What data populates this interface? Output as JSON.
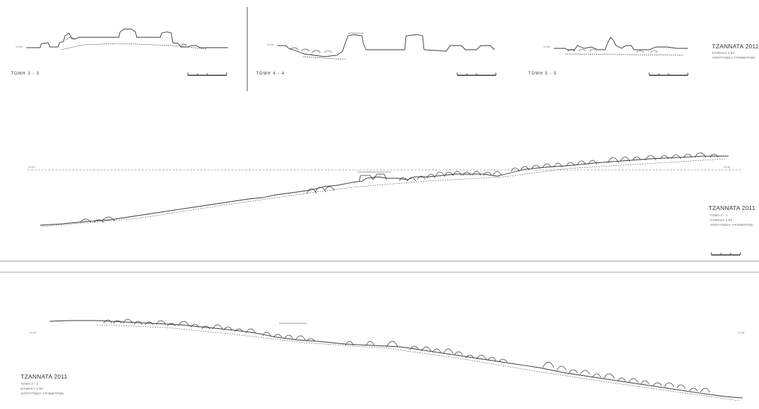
{
  "top_sections": [
    {
      "label": "ΤΟΜΗ 3 - 3"
    },
    {
      "label": "ΤΟΜΗ 4 - 4"
    },
    {
      "label": "ΤΟΜΗ 5 - 5"
    }
  ],
  "title_top": {
    "title": "TZANNATA 2011",
    "line1": "ΚΛΙΜΑΚΑ 1:50",
    "line2": "ΑΠΟΤΥΠΩΣΗ ΥΨΟΜΕΤΡΩΝ"
  },
  "title_middle": {
    "title": "TZANNATA 2011",
    "line1": "ΤΟΜΗ 1 - 1",
    "line2": "ΚΛΙΜΑΚΑ 1:50",
    "line3": "ΑΠΟΤΥΠΩΣΗ ΥΨΟΜΕΤΡΩΝ"
  },
  "title_bottom": {
    "title": "TZANNATA 2011",
    "line1": "ΤΟΜΗ 2 - 2",
    "line2": "ΚΛΙΜΑΚΑ 1:50",
    "line3": "ΑΠΟΤΥΠΩΣΗ ΥΨΟΜΕΤΡΩΝ"
  },
  "levels": {
    "mid_left": "+0.00",
    "mid_right": "+0.00",
    "bot_left": "+0.00",
    "bot_right": "+0.00",
    "top1": "+0.00",
    "top2": "+0.00",
    "top3": "+0.00"
  }
}
